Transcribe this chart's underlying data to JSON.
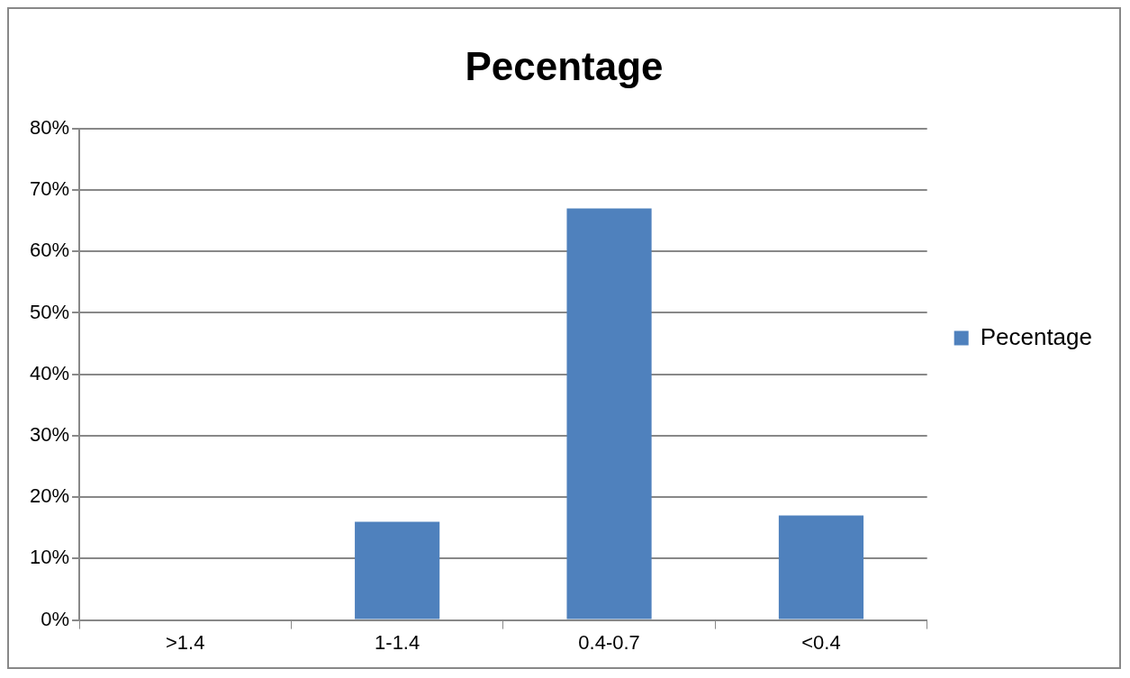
{
  "chart_data": {
    "type": "bar",
    "title": "Pecentage",
    "categories": [
      ">1.4",
      "1-1.4",
      "0.4-0.7",
      "<0.4"
    ],
    "series": [
      {
        "name": "Pecentage",
        "color": "#4f81bd",
        "values": [
          0,
          16,
          67,
          17
        ]
      }
    ],
    "ylim": [
      0,
      80
    ],
    "yticks": [
      {
        "value": 0,
        "label": "0%"
      },
      {
        "value": 10,
        "label": "10%"
      },
      {
        "value": 20,
        "label": "20%"
      },
      {
        "value": 30,
        "label": "30%"
      },
      {
        "value": 40,
        "label": "40%"
      },
      {
        "value": 50,
        "label": "50%"
      },
      {
        "value": 60,
        "label": "60%"
      },
      {
        "value": 70,
        "label": "70%"
      },
      {
        "value": 80,
        "label": "80%"
      }
    ],
    "grid": "y",
    "legend": "right"
  }
}
